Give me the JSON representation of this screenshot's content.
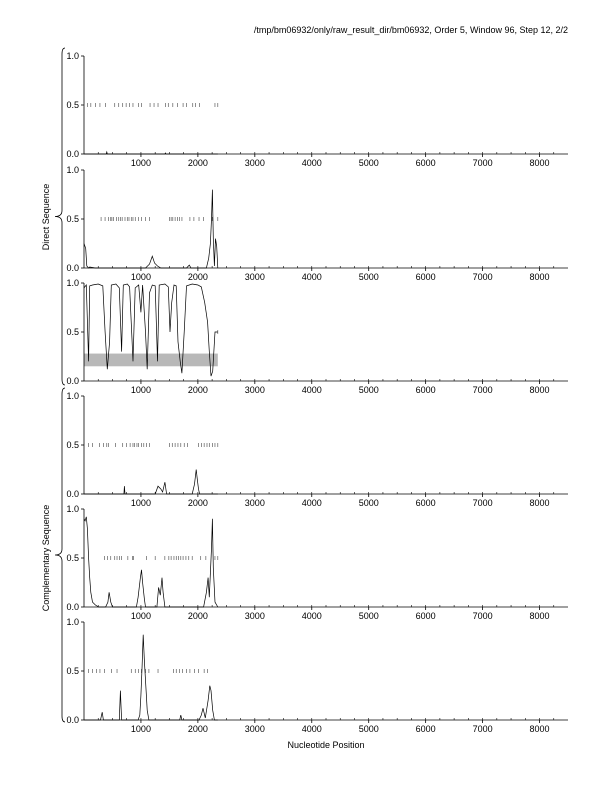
{
  "header_text": "/tmp/bm06932/only/raw_result_dir/bm06932, Order 5, Window 96, Step 12, 2/2",
  "group_labels": {
    "direct": "Direct Sequence",
    "complementary": "Complementary Sequence"
  },
  "chart_data": {
    "type": "line",
    "xlabel": "Nucleotide Position",
    "xlim": [
      0,
      8500
    ],
    "x_ticks": [
      1000,
      2000,
      3000,
      4000,
      5000,
      6000,
      7000,
      8000
    ],
    "ylim": [
      0,
      1
    ],
    "y_ticks": [
      "0.0",
      "0.5",
      "1.0"
    ],
    "sequence_length": 2350,
    "panels": [
      {
        "group": "direct",
        "marker_positions": [
          0,
          60,
          120,
          200,
          280,
          380,
          540,
          610,
          680,
          740,
          800,
          860,
          960,
          1010,
          1160,
          1230,
          1300,
          1430,
          1480,
          1560,
          1640,
          1740,
          1800,
          1910,
          1960,
          2030,
          2300,
          2350
        ],
        "line": [
          [
            0,
            0
          ],
          [
            390,
            0
          ],
          [
            400,
            0.02
          ],
          [
            410,
            0
          ],
          [
            1420,
            0
          ],
          [
            1430,
            0.01
          ],
          [
            1440,
            0
          ],
          [
            2350,
            0
          ]
        ]
      },
      {
        "group": "direct",
        "marker_positions": [
          300,
          370,
          430,
          470,
          490,
          520,
          570,
          610,
          640,
          670,
          720,
          760,
          790,
          830,
          860,
          900,
          960,
          1010,
          1080,
          1150,
          1500,
          1530,
          1560,
          1600,
          1640,
          1680,
          1720,
          1860,
          1930,
          2020,
          2100,
          2250,
          2350
        ],
        "line": [
          [
            0,
            0.25
          ],
          [
            30,
            0.2
          ],
          [
            50,
            0.02
          ],
          [
            80,
            0
          ],
          [
            100,
            0.01
          ],
          [
            200,
            0
          ],
          [
            1080,
            0
          ],
          [
            1150,
            0.04
          ],
          [
            1200,
            0.12
          ],
          [
            1240,
            0.05
          ],
          [
            1290,
            0.02
          ],
          [
            1350,
            0
          ],
          [
            1800,
            0
          ],
          [
            1850,
            0.03
          ],
          [
            1880,
            0
          ],
          [
            2150,
            0
          ],
          [
            2190,
            0.1
          ],
          [
            2220,
            0.25
          ],
          [
            2240,
            0.5
          ],
          [
            2255,
            0.8
          ],
          [
            2270,
            0.3
          ],
          [
            2290,
            0.02
          ],
          [
            2310,
            0.3
          ],
          [
            2330,
            0.22
          ],
          [
            2350,
            0
          ]
        ]
      },
      {
        "group": "direct",
        "marker_positions": [
          2350
        ],
        "shaded_band": {
          "from": 0,
          "to": 2350,
          "y_low": 0.15,
          "y_high": 0.28
        },
        "line": [
          [
            0,
            0.95
          ],
          [
            40,
            0.98
          ],
          [
            80,
            0.2
          ],
          [
            100,
            0.97
          ],
          [
            150,
            0.98
          ],
          [
            250,
            0.99
          ],
          [
            330,
            0.97
          ],
          [
            370,
            0.5
          ],
          [
            410,
            0.12
          ],
          [
            450,
            0.4
          ],
          [
            480,
            0.98
          ],
          [
            560,
            0.99
          ],
          [
            620,
            0.95
          ],
          [
            660,
            0.3
          ],
          [
            690,
            0.98
          ],
          [
            760,
            0.99
          ],
          [
            800,
            0.96
          ],
          [
            860,
            0.2
          ],
          [
            900,
            0.95
          ],
          [
            960,
            0.98
          ],
          [
            1000,
            0.7
          ],
          [
            1030,
            0.98
          ],
          [
            1080,
            0.5
          ],
          [
            1110,
            0.12
          ],
          [
            1150,
            0.9
          ],
          [
            1200,
            0.98
          ],
          [
            1250,
            0.97
          ],
          [
            1290,
            0.2
          ],
          [
            1320,
            0.98
          ],
          [
            1420,
            0.99
          ],
          [
            1480,
            0.96
          ],
          [
            1510,
            0.5
          ],
          [
            1540,
            0.8
          ],
          [
            1580,
            0.98
          ],
          [
            1620,
            0.97
          ],
          [
            1650,
            0.4
          ],
          [
            1690,
            0.2
          ],
          [
            1720,
            0.08
          ],
          [
            1760,
            0.5
          ],
          [
            1800,
            0.97
          ],
          [
            1900,
            0.99
          ],
          [
            2000,
            0.98
          ],
          [
            2060,
            0.96
          ],
          [
            2120,
            0.8
          ],
          [
            2170,
            0.6
          ],
          [
            2200,
            0.3
          ],
          [
            2230,
            0.05
          ],
          [
            2260,
            0.1
          ],
          [
            2300,
            0.5
          ],
          [
            2350,
            0.5
          ]
        ]
      },
      {
        "group": "complementary",
        "marker_positions": [
          80,
          150,
          270,
          340,
          400,
          430,
          550,
          680,
          750,
          810,
          860,
          890,
          930,
          960,
          1010,
          1050,
          1100,
          1150,
          1500,
          1550,
          1600,
          1650,
          1700,
          1760,
          1820,
          2010,
          2060,
          2110,
          2160,
          2200,
          2260,
          2300,
          2350
        ],
        "line": [
          [
            0,
            0
          ],
          [
            700,
            0
          ],
          [
            710,
            0.08
          ],
          [
            720,
            0
          ],
          [
            1250,
            0
          ],
          [
            1300,
            0.08
          ],
          [
            1350,
            0.05
          ],
          [
            1380,
            0.02
          ],
          [
            1420,
            0.12
          ],
          [
            1450,
            0
          ],
          [
            1900,
            0
          ],
          [
            1940,
            0.1
          ],
          [
            1970,
            0.25
          ],
          [
            1990,
            0.15
          ],
          [
            2010,
            0.05
          ],
          [
            2030,
            0
          ],
          [
            2350,
            0
          ]
        ]
      },
      {
        "group": "complementary",
        "marker_positions": [
          360,
          410,
          470,
          540,
          580,
          620,
          660,
          770,
          850,
          870,
          1100,
          1250,
          1420,
          1490,
          1530,
          1580,
          1620,
          1660,
          1700,
          1740,
          1790,
          1840,
          1900,
          2050,
          2140,
          2300,
          2350
        ],
        "line": [
          [
            0,
            0.9
          ],
          [
            20,
            0.88
          ],
          [
            40,
            0.92
          ],
          [
            60,
            0.8
          ],
          [
            80,
            0.5
          ],
          [
            100,
            0.3
          ],
          [
            120,
            0.15
          ],
          [
            150,
            0.05
          ],
          [
            200,
            0.02
          ],
          [
            260,
            0
          ],
          [
            380,
            0
          ],
          [
            420,
            0.05
          ],
          [
            440,
            0.15
          ],
          [
            470,
            0.05
          ],
          [
            500,
            0
          ],
          [
            920,
            0
          ],
          [
            950,
            0.1
          ],
          [
            990,
            0.3
          ],
          [
            1010,
            0.38
          ],
          [
            1030,
            0.25
          ],
          [
            1060,
            0.08
          ],
          [
            1080,
            0
          ],
          [
            1280,
            0
          ],
          [
            1310,
            0.2
          ],
          [
            1340,
            0.12
          ],
          [
            1370,
            0.3
          ],
          [
            1390,
            0.15
          ],
          [
            1420,
            0
          ],
          [
            2100,
            0
          ],
          [
            2150,
            0.15
          ],
          [
            2180,
            0.3
          ],
          [
            2200,
            0.1
          ],
          [
            2220,
            0.35
          ],
          [
            2240,
            0.6
          ],
          [
            2255,
            0.9
          ],
          [
            2270,
            0.4
          ],
          [
            2300,
            0.05
          ],
          [
            2350,
            0
          ]
        ]
      },
      {
        "group": "complementary",
        "marker_positions": [
          80,
          150,
          220,
          280,
          360,
          480,
          580,
          830,
          900,
          960,
          1010,
          1080,
          1140,
          1300,
          1570,
          1620,
          1680,
          1730,
          1800,
          1860,
          1940,
          2010,
          2110,
          2170
        ],
        "line": [
          [
            0,
            0
          ],
          [
            290,
            0
          ],
          [
            320,
            0.08
          ],
          [
            340,
            0
          ],
          [
            620,
            0
          ],
          [
            640,
            0.3
          ],
          [
            660,
            0
          ],
          [
            950,
            0
          ],
          [
            980,
            0.05
          ],
          [
            1000,
            0.25
          ],
          [
            1020,
            0.55
          ],
          [
            1040,
            0.87
          ],
          [
            1060,
            0.6
          ],
          [
            1090,
            0.3
          ],
          [
            1110,
            0.1
          ],
          [
            1140,
            0
          ],
          [
            1680,
            0
          ],
          [
            1700,
            0.05
          ],
          [
            1720,
            0
          ],
          [
            2020,
            0
          ],
          [
            2060,
            0.05
          ],
          [
            2090,
            0.12
          ],
          [
            2130,
            0.02
          ],
          [
            2180,
            0.2
          ],
          [
            2210,
            0.35
          ],
          [
            2230,
            0.3
          ],
          [
            2260,
            0.1
          ],
          [
            2290,
            0
          ],
          [
            2350,
            0
          ]
        ]
      }
    ]
  }
}
